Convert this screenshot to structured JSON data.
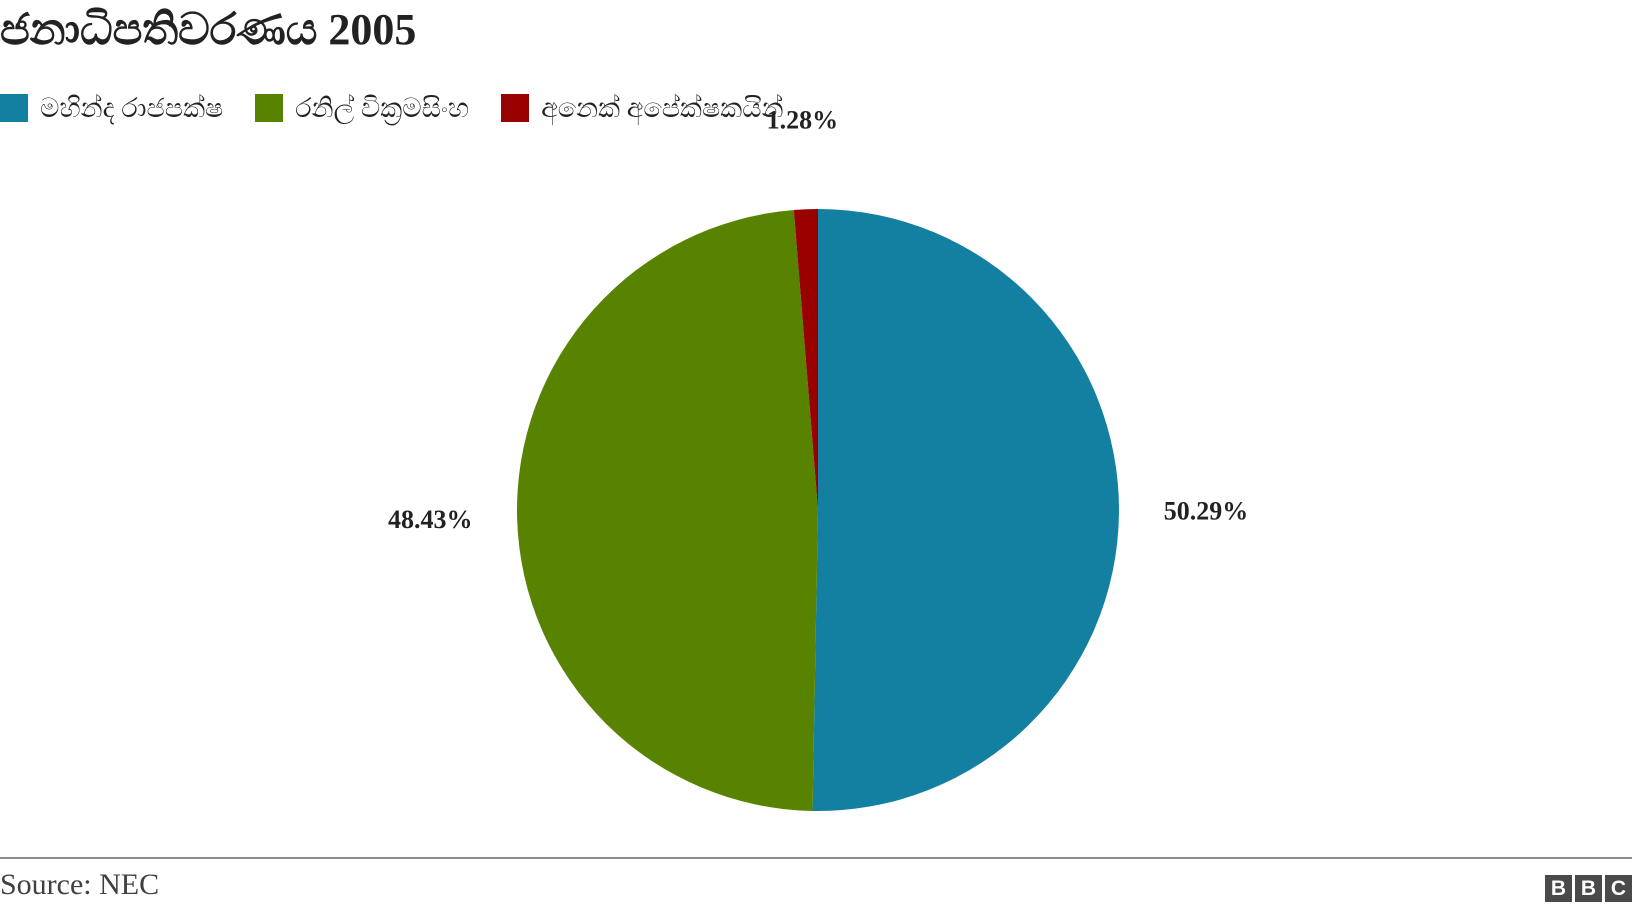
{
  "chart_data": {
    "type": "pie",
    "title": "ජනාධිපතිවරණය 2005",
    "legend_position": "top-left",
    "slices": [
      {
        "label": "මහින්ද රාජපක්ෂ",
        "value": 50.29,
        "display": "50.29%",
        "color": "#1380a1"
      },
      {
        "label": "රනිල් වික්‍රමසිංහ",
        "value": 48.43,
        "display": "48.43%",
        "color": "#588300"
      },
      {
        "label": "අනෙක් අපේක්ෂකයින්",
        "value": 1.28,
        "display": "1.28%",
        "color": "#990000"
      }
    ]
  },
  "footer": {
    "source": "Source: NEC",
    "logo_letters": [
      "B",
      "B",
      "C"
    ]
  }
}
